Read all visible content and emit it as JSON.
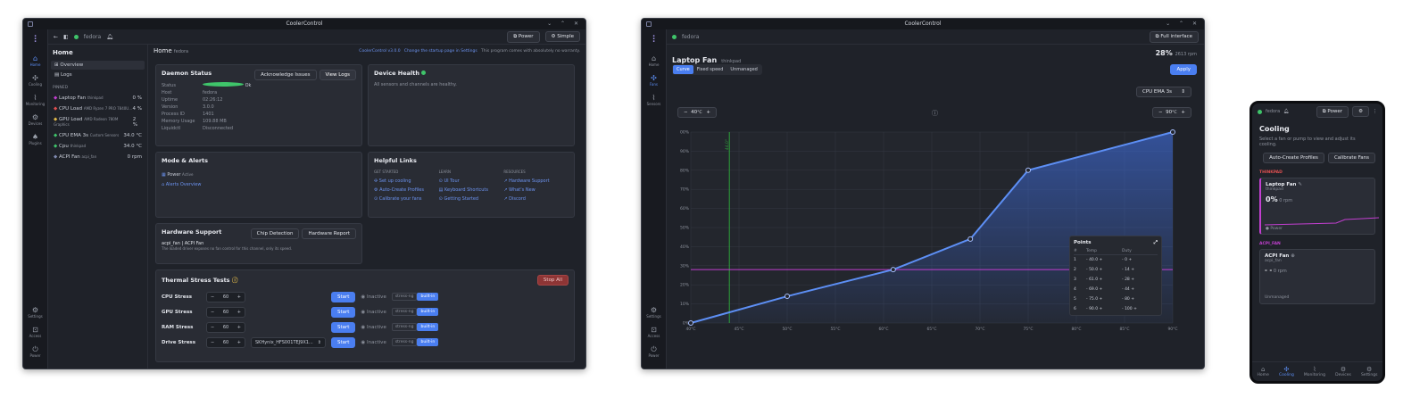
{
  "win1": {
    "title": "CoolerControl",
    "host": "fedora",
    "power": "Power",
    "simple": "Simple",
    "rail": [
      "Home",
      "Cooling",
      "Monitoring",
      "Devices",
      "Plugins"
    ],
    "rail_bottom": [
      "Settings",
      "Access",
      "Power"
    ],
    "side": {
      "title": "Home",
      "items": [
        "Overview",
        "Logs"
      ],
      "pinned": "PINNED",
      "rows": [
        {
          "n": "Laptop Fan",
          "s": "thinkpad",
          "v": "0 %"
        },
        {
          "n": "CPU Load",
          "s": "AMD Ryzen 7 PRO 7840U...",
          "v": "4 %"
        },
        {
          "n": "GPU Load",
          "s": "AMD Radeon 780M Graphics",
          "v": "2 %"
        },
        {
          "n": "CPU EMA 3s",
          "s": "Custom Sensors",
          "v": "34.0 °C"
        },
        {
          "n": "Cpu",
          "s": "thinkpad",
          "v": "34.0 °C"
        },
        {
          "n": "ACPI Fan",
          "s": "acpi_fan",
          "v": "0 rpm"
        }
      ]
    },
    "home": {
      "title": "Home",
      "sub": "fedora",
      "ver": "CoolerControl v3.0.0",
      "change": "Change the startup page in Settings",
      "note": "This program comes with absolutely no warranty."
    },
    "daemon": {
      "title": "Daemon Status",
      "ack": "Acknowledge Issues",
      "logs": "View Logs",
      "kv": [
        [
          "Status",
          "Ok"
        ],
        [
          "Host",
          "fedora"
        ],
        [
          "Uptime",
          "02:26:12"
        ],
        [
          "Version",
          "3.0.0"
        ],
        [
          "Process ID",
          "1401"
        ],
        [
          "Memory Usage",
          "109.88 MB"
        ],
        [
          "Liquidctl",
          "Disconnected"
        ]
      ]
    },
    "health": {
      "title": "Device Health",
      "msg": "All sensors and channels are healthy."
    },
    "modes": {
      "title": "Mode & Alerts",
      "power": "Power",
      "active": "Active",
      "alerts": "Alerts Overview"
    },
    "links": {
      "title": "Helpful Links",
      "h1": "GET STARTED",
      "h2": "LEARN",
      "h3": "RESOURCES",
      "c1": [
        "Set up cooling",
        "Auto-Create Profiles",
        "Calibrate your fans"
      ],
      "c2": [
        "UI Tour",
        "Keyboard Shortcuts",
        "Getting Started"
      ],
      "c3": [
        "Hardware Support",
        "What's New",
        "Discord"
      ]
    },
    "hw": {
      "title": "Hardware Support",
      "chip": "Chip Detection",
      "report": "Hardware Report",
      "dev": "acpi_fan | ACPI Fan",
      "desc": "The loaded driver exposes no fan control for this channel, only its speed."
    },
    "stress": {
      "title": "Thermal Stress Tests",
      "stop": "Stop All",
      "start": "Start",
      "inactive": "Inactive",
      "tool": "stress-ng",
      "builtin": "built-in",
      "rows": [
        {
          "n": "CPU Stress",
          "v": "60"
        },
        {
          "n": "GPU Stress",
          "v": "60"
        },
        {
          "n": "RAM Stress",
          "v": "60"
        },
        {
          "n": "Drive Stress",
          "v": "60",
          "drive": "SKHynix_HFS001TEJ9X1..."
        }
      ]
    }
  },
  "win2": {
    "title": "CoolerControl",
    "host": "fedora",
    "full": "Full interface",
    "fan": "Laptop Fan",
    "sub": "thinkpad",
    "duty": "28%",
    "rpm": "2613",
    "rpmu": "rpm",
    "tabs": [
      "Curve",
      "Fixed speed",
      "Unmanaged"
    ],
    "apply": "Apply",
    "sensor": "CPU EMA 3s",
    "minT": "40",
    "maxT": "90",
    "unit": "°C",
    "marker": "44.0°",
    "points": {
      "title": "Points",
      "h": [
        "#",
        "Temp",
        "Duty"
      ],
      "rows": [
        [
          "1",
          "40.0",
          "0"
        ],
        [
          "2",
          "50.0",
          "14"
        ],
        [
          "3",
          "61.0",
          "28"
        ],
        [
          "4",
          "69.0",
          "44"
        ],
        [
          "5",
          "75.0",
          "80"
        ],
        [
          "6",
          "90.0",
          "100"
        ]
      ]
    }
  },
  "chart_data": {
    "type": "line",
    "title": "",
    "x": [
      40,
      50,
      61,
      69,
      75,
      90
    ],
    "values": [
      0,
      14,
      28,
      44,
      80,
      100
    ],
    "xlim": [
      40,
      90
    ],
    "ylim": [
      0,
      100
    ],
    "xticks": [
      "40°C",
      "45°C",
      "50°C",
      "55°C",
      "60°C",
      "65°C",
      "70°C",
      "75°C",
      "80°C",
      "85°C",
      "90°C"
    ],
    "yticks": [
      "0%",
      "10%",
      "20%",
      "30%",
      "40%",
      "50%",
      "60%",
      "70%",
      "80%",
      "90%",
      "100%"
    ],
    "current_duty": 28,
    "current_temp": 44,
    "grid": true
  },
  "phone": {
    "host": "fedora",
    "power": "Power",
    "title": "Cooling",
    "desc": "Select a fan or pump to view and adjust its cooling.",
    "auto": "Auto-Create Profiles",
    "cal": "Calibrate Fans",
    "g1": "THINKPAD",
    "f1": {
      "n": "Laptop Fan",
      "s": "thinkpad",
      "v": "0%",
      "rpm": "0 rpm",
      "mode": "Power"
    },
    "g2": "ACPI_FAN",
    "f2": {
      "n": "ACPI Fan",
      "s": "acpi_fan",
      "v": "- -",
      "rpm": "0 rpm",
      "mode": "Unmanaged"
    },
    "nav": [
      "Home",
      "Cooling",
      "Monitoring",
      "Devices",
      "Settings"
    ]
  },
  "colors": {
    "accent": "#4a7ef0",
    "ok": "#3fc46a",
    "curve": "#5d8ff5",
    "duty_line": "#c23fd0",
    "temp_line": "#2ca33a"
  }
}
